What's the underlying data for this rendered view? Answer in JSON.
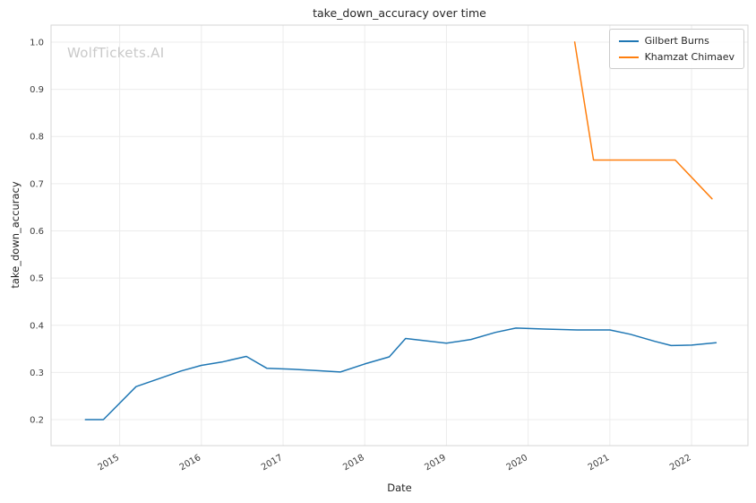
{
  "watermark": "WolfTickets.AI",
  "chart_data": {
    "type": "line",
    "title": "take_down_accuracy over time",
    "xlabel": "Date",
    "ylabel": "take_down_accuracy",
    "xlim": [
      2014.16,
      2022.69
    ],
    "ylim": [
      0.145,
      1.036
    ],
    "xticks": [
      2015,
      2016,
      2017,
      2018,
      2019,
      2020,
      2021,
      2022
    ],
    "yticks": [
      0.2,
      0.3,
      0.4,
      0.5,
      0.6,
      0.7,
      0.8,
      0.9,
      1.0
    ],
    "grid": true,
    "legend_position": "upper right",
    "series": [
      {
        "name": "Gilbert Burns",
        "color": "#1f77b4",
        "x": [
          2014.58,
          2014.8,
          2015.2,
          2015.45,
          2015.75,
          2016.0,
          2016.25,
          2016.55,
          2016.8,
          2017.1,
          2017.4,
          2017.7,
          2018.0,
          2018.3,
          2018.5,
          2018.75,
          2019.0,
          2019.3,
          2019.6,
          2019.85,
          2020.2,
          2020.6,
          2021.0,
          2021.25,
          2021.55,
          2021.75,
          2022.0,
          2022.3
        ],
        "y": [
          0.2,
          0.2,
          0.27,
          0.285,
          0.303,
          0.315,
          0.322,
          0.334,
          0.309,
          0.307,
          0.304,
          0.301,
          0.318,
          0.333,
          0.372,
          0.367,
          0.362,
          0.37,
          0.385,
          0.394,
          0.392,
          0.39,
          0.39,
          0.381,
          0.366,
          0.357,
          0.358,
          0.363
        ]
      },
      {
        "name": "Khamzat Chimaev",
        "color": "#ff7f0e",
        "x": [
          2020.57,
          2020.8,
          2021.8,
          2022.25
        ],
        "y": [
          1.0,
          0.75,
          0.75,
          0.668
        ]
      }
    ]
  }
}
